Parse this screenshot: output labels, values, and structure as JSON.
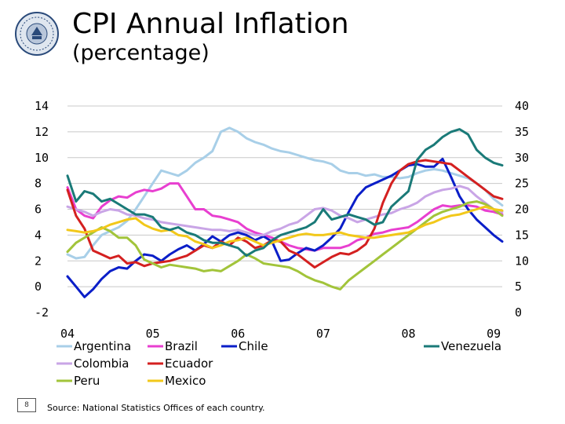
{
  "header": {
    "title": "CPI Annual Inflation",
    "subtitle": "(percentage)"
  },
  "footer": {
    "page_number": "8",
    "source": "Source: National Statistics Offices of each country."
  },
  "chart_data": {
    "type": "line",
    "title": "CPI Annual Inflation (percentage)",
    "left_axis": {
      "ylim": [
        -2,
        14
      ],
      "ticks": [
        "14",
        "12",
        "10",
        "8",
        "6",
        "4",
        "2",
        "0",
        "-2"
      ]
    },
    "right_axis": {
      "ylim": [
        0,
        40
      ],
      "ticks": [
        "40",
        "35",
        "30",
        "25",
        "20",
        "15",
        "10",
        "5",
        "0"
      ],
      "series": [
        "Venezuela"
      ]
    },
    "x_range": [
      2004,
      2009.1
    ],
    "x_ticks": [
      {
        "label": "04",
        "value": 2004
      },
      {
        "label": "05",
        "value": 2005
      },
      {
        "label": "06",
        "value": 2006
      },
      {
        "label": "07",
        "value": 2007
      },
      {
        "label": "08",
        "value": 2008
      },
      {
        "label": "09",
        "value": 2009
      }
    ],
    "series": [
      {
        "name": "Argentina",
        "axis": "left",
        "color": "#a8cfe8",
        "x": [
          2004.0,
          2004.1,
          2004.2,
          2004.3,
          2004.4,
          2004.5,
          2004.6,
          2004.7,
          2004.8,
          2004.9,
          2005.0,
          2005.1,
          2005.2,
          2005.3,
          2005.4,
          2005.5,
          2005.6,
          2005.7,
          2005.8,
          2005.9,
          2006.0,
          2006.1,
          2006.2,
          2006.3,
          2006.4,
          2006.5,
          2006.6,
          2006.7,
          2006.8,
          2006.9,
          2007.0,
          2007.1,
          2007.2,
          2007.3,
          2007.4,
          2007.5,
          2007.6,
          2007.7,
          2007.8,
          2007.9,
          2008.0,
          2008.1,
          2008.2,
          2008.3,
          2008.4,
          2008.5,
          2008.6,
          2008.7,
          2008.8,
          2008.9,
          2009.0,
          2009.1
        ],
        "values": [
          2.5,
          2.2,
          2.3,
          3.2,
          4.0,
          4.3,
          4.6,
          5.1,
          6.0,
          7.0,
          8.0,
          9.0,
          8.8,
          8.6,
          9.0,
          9.6,
          10.0,
          10.5,
          12.0,
          12.3,
          12.0,
          11.5,
          11.2,
          11.0,
          10.7,
          10.5,
          10.4,
          10.2,
          10.0,
          9.8,
          9.7,
          9.5,
          9.0,
          8.8,
          8.8,
          8.6,
          8.7,
          8.5,
          8.5,
          8.4,
          8.5,
          8.8,
          9.0,
          9.1,
          9.0,
          8.8,
          8.6,
          8.4,
          8.0,
          7.5,
          6.8,
          6.3
        ]
      },
      {
        "name": "Brazil",
        "axis": "left",
        "color": "#e83fd0",
        "x": [
          2004.0,
          2004.1,
          2004.2,
          2004.3,
          2004.4,
          2004.5,
          2004.6,
          2004.7,
          2004.8,
          2004.9,
          2005.0,
          2005.1,
          2005.2,
          2005.3,
          2005.4,
          2005.5,
          2005.6,
          2005.7,
          2005.8,
          2005.9,
          2006.0,
          2006.1,
          2006.2,
          2006.3,
          2006.4,
          2006.5,
          2006.6,
          2006.7,
          2006.8,
          2006.9,
          2007.0,
          2007.1,
          2007.2,
          2007.3,
          2007.4,
          2007.5,
          2007.6,
          2007.7,
          2007.8,
          2007.9,
          2008.0,
          2008.1,
          2008.2,
          2008.3,
          2008.4,
          2008.5,
          2008.6,
          2008.7,
          2008.8,
          2008.9,
          2009.0,
          2009.1
        ],
        "values": [
          7.7,
          6.0,
          5.5,
          5.3,
          6.2,
          6.7,
          7.0,
          6.9,
          7.3,
          7.5,
          7.4,
          7.6,
          8.0,
          8.0,
          7.0,
          6.0,
          6.0,
          5.5,
          5.4,
          5.2,
          5.0,
          4.5,
          4.2,
          4.0,
          3.8,
          3.5,
          3.2,
          3.0,
          2.9,
          2.8,
          3.0,
          3.0,
          3.0,
          3.2,
          3.6,
          3.8,
          4.1,
          4.2,
          4.4,
          4.5,
          4.6,
          5.0,
          5.5,
          6.0,
          6.3,
          6.2,
          6.3,
          6.3,
          6.2,
          5.9,
          5.8,
          5.6
        ]
      },
      {
        "name": "Chile",
        "axis": "left",
        "color": "#0a1ec8",
        "x": [
          2004.0,
          2004.1,
          2004.2,
          2004.3,
          2004.4,
          2004.5,
          2004.6,
          2004.7,
          2004.8,
          2004.9,
          2005.0,
          2005.1,
          2005.2,
          2005.3,
          2005.4,
          2005.5,
          2005.6,
          2005.7,
          2005.8,
          2005.9,
          2006.0,
          2006.1,
          2006.2,
          2006.3,
          2006.4,
          2006.5,
          2006.6,
          2006.7,
          2006.8,
          2006.9,
          2007.0,
          2007.1,
          2007.2,
          2007.3,
          2007.4,
          2007.5,
          2007.6,
          2007.7,
          2007.8,
          2007.9,
          2008.0,
          2008.1,
          2008.2,
          2008.3,
          2008.4,
          2008.5,
          2008.6,
          2008.7,
          2008.8,
          2008.9,
          2009.0,
          2009.1
        ],
        "values": [
          0.8,
          0.0,
          -0.8,
          -0.2,
          0.6,
          1.2,
          1.5,
          1.4,
          2.0,
          2.5,
          2.4,
          2.0,
          2.5,
          2.9,
          3.2,
          2.8,
          3.3,
          3.9,
          3.5,
          4.0,
          4.2,
          4.0,
          3.6,
          3.9,
          3.5,
          2.0,
          2.1,
          2.6,
          3.0,
          2.8,
          3.2,
          3.8,
          4.5,
          5.8,
          7.0,
          7.7,
          8.0,
          8.3,
          8.6,
          9.0,
          9.4,
          9.5,
          9.3,
          9.3,
          9.9,
          8.5,
          7.0,
          6.0,
          5.2,
          4.6,
          4.0,
          3.5
        ]
      },
      {
        "name": "Colombia",
        "axis": "left",
        "color": "#c9a5e6",
        "x": [
          2004.0,
          2004.1,
          2004.2,
          2004.3,
          2004.4,
          2004.5,
          2004.6,
          2004.7,
          2004.8,
          2004.9,
          2005.0,
          2005.1,
          2005.2,
          2005.3,
          2005.4,
          2005.5,
          2005.6,
          2005.7,
          2005.8,
          2005.9,
          2006.0,
          2006.1,
          2006.2,
          2006.3,
          2006.4,
          2006.5,
          2006.6,
          2006.7,
          2006.8,
          2006.9,
          2007.0,
          2007.1,
          2007.2,
          2007.3,
          2007.4,
          2007.5,
          2007.6,
          2007.7,
          2007.8,
          2007.9,
          2008.0,
          2008.1,
          2008.2,
          2008.3,
          2008.4,
          2008.5,
          2008.6,
          2008.7,
          2008.8,
          2008.9,
          2009.0,
          2009.1
        ],
        "values": [
          6.2,
          6.0,
          5.8,
          5.5,
          5.8,
          6.0,
          5.9,
          5.6,
          5.5,
          5.3,
          5.2,
          5.0,
          4.9,
          4.8,
          4.7,
          4.6,
          4.5,
          4.4,
          4.4,
          4.3,
          4.4,
          4.2,
          4.0,
          4.0,
          4.3,
          4.5,
          4.8,
          5.0,
          5.5,
          6.0,
          6.1,
          5.9,
          5.5,
          5.3,
          5.0,
          5.2,
          5.4,
          5.6,
          5.7,
          6.0,
          6.2,
          6.5,
          7.0,
          7.3,
          7.5,
          7.6,
          7.8,
          7.6,
          7.0,
          6.5,
          6.0,
          5.8
        ]
      },
      {
        "name": "Ecuador",
        "axis": "left",
        "color": "#d42020",
        "x": [
          2004.0,
          2004.1,
          2004.2,
          2004.3,
          2004.4,
          2004.5,
          2004.6,
          2004.7,
          2004.8,
          2004.9,
          2005.0,
          2005.1,
          2005.2,
          2005.3,
          2005.4,
          2005.5,
          2005.6,
          2005.7,
          2005.8,
          2005.9,
          2006.0,
          2006.1,
          2006.2,
          2006.3,
          2006.4,
          2006.5,
          2006.6,
          2006.7,
          2006.8,
          2006.9,
          2007.0,
          2007.1,
          2007.2,
          2007.3,
          2007.4,
          2007.5,
          2007.6,
          2007.7,
          2007.8,
          2007.9,
          2008.0,
          2008.1,
          2008.2,
          2008.3,
          2008.4,
          2008.5,
          2008.6,
          2008.7,
          2008.8,
          2008.9,
          2009.0,
          2009.1
        ],
        "values": [
          7.5,
          5.5,
          4.5,
          2.8,
          2.5,
          2.2,
          2.4,
          1.8,
          1.9,
          1.6,
          1.8,
          1.9,
          2.0,
          2.2,
          2.4,
          2.8,
          3.2,
          3.0,
          3.5,
          3.2,
          3.8,
          3.5,
          3.0,
          3.2,
          3.6,
          3.5,
          2.8,
          2.5,
          2.0,
          1.5,
          1.9,
          2.3,
          2.6,
          2.5,
          2.8,
          3.3,
          4.5,
          6.5,
          8.0,
          9.0,
          9.5,
          9.7,
          9.8,
          9.7,
          9.6,
          9.5,
          9.0,
          8.5,
          8.0,
          7.5,
          7.0,
          6.8
        ]
      },
      {
        "name": "Peru",
        "axis": "left",
        "color": "#a2c43a",
        "x": [
          2004.0,
          2004.1,
          2004.2,
          2004.3,
          2004.4,
          2004.5,
          2004.6,
          2004.7,
          2004.8,
          2004.9,
          2005.0,
          2005.1,
          2005.2,
          2005.3,
          2005.4,
          2005.5,
          2005.6,
          2005.7,
          2005.8,
          2005.9,
          2006.0,
          2006.1,
          2006.2,
          2006.3,
          2006.4,
          2006.5,
          2006.6,
          2006.7,
          2006.8,
          2006.9,
          2007.0,
          2007.1,
          2007.2,
          2007.3,
          2007.4,
          2007.5,
          2007.6,
          2007.7,
          2007.8,
          2007.9,
          2008.0,
          2008.1,
          2008.2,
          2008.3,
          2008.4,
          2008.5,
          2008.6,
          2008.7,
          2008.8,
          2008.9,
          2009.0,
          2009.1
        ],
        "values": [
          2.7,
          3.4,
          3.8,
          4.2,
          4.6,
          4.3,
          3.8,
          3.8,
          3.2,
          2.1,
          1.8,
          1.5,
          1.7,
          1.6,
          1.5,
          1.4,
          1.2,
          1.3,
          1.2,
          1.6,
          2.0,
          2.5,
          2.2,
          1.8,
          1.7,
          1.6,
          1.5,
          1.2,
          0.8,
          0.5,
          0.3,
          0.0,
          -0.2,
          0.5,
          1.0,
          1.5,
          2.0,
          2.5,
          3.0,
          3.5,
          4.0,
          4.5,
          5.0,
          5.5,
          5.8,
          6.0,
          6.2,
          6.5,
          6.6,
          6.4,
          6.0,
          5.5
        ]
      },
      {
        "name": "Mexico",
        "axis": "left",
        "color": "#f2c81a",
        "x": [
          2004.0,
          2004.1,
          2004.2,
          2004.3,
          2004.4,
          2004.5,
          2004.6,
          2004.7,
          2004.8,
          2004.9,
          2005.0,
          2005.1,
          2005.2,
          2005.3,
          2005.4,
          2005.5,
          2005.6,
          2005.7,
          2005.8,
          2005.9,
          2006.0,
          2006.1,
          2006.2,
          2006.3,
          2006.4,
          2006.5,
          2006.6,
          2006.7,
          2006.8,
          2006.9,
          2007.0,
          2007.1,
          2007.2,
          2007.3,
          2007.4,
          2007.5,
          2007.6,
          2007.7,
          2007.8,
          2007.9,
          2008.0,
          2008.1,
          2008.2,
          2008.3,
          2008.4,
          2008.5,
          2008.6,
          2008.7,
          2008.8,
          2008.9,
          2009.0,
          2009.1
        ],
        "values": [
          4.4,
          4.3,
          4.2,
          4.3,
          4.5,
          4.8,
          5.0,
          5.2,
          5.3,
          4.8,
          4.5,
          4.3,
          4.4,
          4.0,
          3.9,
          3.5,
          3.3,
          3.0,
          3.2,
          3.5,
          3.6,
          3.8,
          3.5,
          3.2,
          3.4,
          3.6,
          3.8,
          4.0,
          4.1,
          4.0,
          4.0,
          4.1,
          4.2,
          4.0,
          3.9,
          3.8,
          3.8,
          3.9,
          4.0,
          4.1,
          4.2,
          4.5,
          4.8,
          5.0,
          5.3,
          5.5,
          5.6,
          5.8,
          6.0,
          6.2,
          6.0,
          5.9
        ]
      },
      {
        "name": "Venezuela",
        "axis": "right",
        "color": "#1a7a78",
        "x": [
          2004.0,
          2004.1,
          2004.2,
          2004.3,
          2004.4,
          2004.5,
          2004.6,
          2004.7,
          2004.8,
          2004.9,
          2005.0,
          2005.1,
          2005.2,
          2005.3,
          2005.4,
          2005.5,
          2005.6,
          2005.7,
          2005.8,
          2005.9,
          2006.0,
          2006.1,
          2006.2,
          2006.3,
          2006.4,
          2006.5,
          2006.6,
          2006.7,
          2006.8,
          2006.9,
          2007.0,
          2007.1,
          2007.2,
          2007.3,
          2007.4,
          2007.5,
          2007.6,
          2007.7,
          2007.8,
          2007.9,
          2008.0,
          2008.1,
          2008.2,
          2008.3,
          2008.4,
          2008.5,
          2008.6,
          2008.7,
          2008.8,
          2008.9,
          2009.0,
          2009.1
        ],
        "values": [
          26.5,
          21.5,
          23.5,
          23.0,
          21.5,
          22.0,
          21.0,
          20.0,
          19.0,
          19.0,
          18.5,
          16.5,
          16.0,
          16.5,
          15.5,
          15.0,
          14.0,
          13.5,
          13.5,
          13.0,
          12.5,
          11.0,
          12.0,
          12.5,
          14.0,
          15.0,
          15.5,
          16.0,
          16.5,
          17.5,
          20.0,
          18.0,
          18.5,
          19.0,
          18.5,
          18.0,
          17.0,
          17.5,
          20.5,
          22.0,
          23.5,
          29.5,
          31.5,
          32.5,
          34.0,
          35.0,
          35.5,
          34.5,
          31.5,
          30.0,
          29.0,
          28.5
        ]
      }
    ],
    "legend": {
      "placement": "bottom",
      "rows": [
        [
          "Argentina",
          "Brazil",
          "Chile",
          "Venezuela"
        ],
        [
          "Colombia",
          "Ecuador"
        ],
        [
          "Peru",
          "Mexico"
        ]
      ]
    }
  }
}
